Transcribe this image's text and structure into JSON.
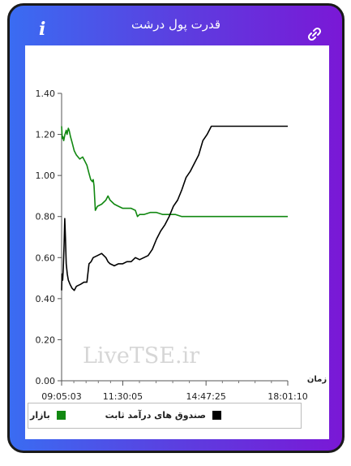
{
  "app": {
    "title": "قدرت پول درشت",
    "info_icon": "info-icon",
    "link_icon": "link-icon",
    "accent_colors": [
      "#3a6cf2",
      "#7a18d6"
    ]
  },
  "watermark": "LiveTSE.ir",
  "chart_data": {
    "type": "line",
    "xlabel": "زمان",
    "ylabel": "",
    "ylim": [
      0,
      1.4
    ],
    "y_ticks": [
      "0.00",
      "0.20",
      "0.40",
      "0.60",
      "0.80",
      "1.00",
      "1.20",
      "1.40"
    ],
    "x_ticks": [
      "09:05:03",
      "11:30:05",
      "14:47:25",
      "18:01:10"
    ],
    "x_tick_seconds": [
      32703,
      41405,
      53245,
      64870
    ],
    "series": [
      {
        "name": "بازار",
        "color": "#118811",
        "points": [
          [
            "09:05:03",
            1.24
          ],
          [
            "09:06:30",
            1.18
          ],
          [
            "09:08:00",
            1.19
          ],
          [
            "09:10:00",
            1.17
          ],
          [
            "09:13:00",
            1.2
          ],
          [
            "09:16:00",
            1.22
          ],
          [
            "09:18:00",
            1.2
          ],
          [
            "09:21:00",
            1.23
          ],
          [
            "09:23:00",
            1.22
          ],
          [
            "09:26:00",
            1.19
          ],
          [
            "09:30:00",
            1.16
          ],
          [
            "09:35:00",
            1.12
          ],
          [
            "09:40:00",
            1.1
          ],
          [
            "09:48:00",
            1.08
          ],
          [
            "09:55:00",
            1.09
          ],
          [
            "10:00:00",
            1.07
          ],
          [
            "10:05:00",
            1.05
          ],
          [
            "10:10:00",
            1.01
          ],
          [
            "10:14:00",
            0.98
          ],
          [
            "10:18:00",
            0.97
          ],
          [
            "10:20:00",
            0.98
          ],
          [
            "10:22:00",
            0.95
          ],
          [
            "10:25:00",
            0.83
          ],
          [
            "10:30:00",
            0.85
          ],
          [
            "10:40:00",
            0.86
          ],
          [
            "10:50:00",
            0.88
          ],
          [
            "10:55:00",
            0.9
          ],
          [
            "11:00:00",
            0.88
          ],
          [
            "11:10:00",
            0.86
          ],
          [
            "11:20:00",
            0.85
          ],
          [
            "11:30:00",
            0.84
          ],
          [
            "11:40:00",
            0.84
          ],
          [
            "11:50:00",
            0.84
          ],
          [
            "12:00:00",
            0.83
          ],
          [
            "12:05:00",
            0.8
          ],
          [
            "12:10:00",
            0.81
          ],
          [
            "12:20:00",
            0.81
          ],
          [
            "12:35:00",
            0.82
          ],
          [
            "12:50:00",
            0.82
          ],
          [
            "13:05:00",
            0.81
          ],
          [
            "13:20:00",
            0.81
          ],
          [
            "13:35:00",
            0.81
          ],
          [
            "13:50:00",
            0.8
          ],
          [
            "14:30:00",
            0.8
          ],
          [
            "15:30:00",
            0.8
          ],
          [
            "16:30:00",
            0.8
          ],
          [
            "17:30:00",
            0.8
          ],
          [
            "18:01:10",
            0.8
          ]
        ]
      },
      {
        "name": "صندوق های درآمد ثابت",
        "color": "#000000",
        "points": [
          [
            "09:05:03",
            0.44
          ],
          [
            "09:06:00",
            0.52
          ],
          [
            "09:07:30",
            0.49
          ],
          [
            "09:09:00",
            0.55
          ],
          [
            "09:11:00",
            0.67
          ],
          [
            "09:12:30",
            0.79
          ],
          [
            "09:14:00",
            0.7
          ],
          [
            "09:16:00",
            0.57
          ],
          [
            "09:18:30",
            0.52
          ],
          [
            "09:21:00",
            0.49
          ],
          [
            "09:25:00",
            0.47
          ],
          [
            "09:30:00",
            0.45
          ],
          [
            "09:35:00",
            0.44
          ],
          [
            "09:40:00",
            0.46
          ],
          [
            "09:50:00",
            0.47
          ],
          [
            "09:58:00",
            0.48
          ],
          [
            "10:05:00",
            0.48
          ],
          [
            "10:10:00",
            0.57
          ],
          [
            "10:15:00",
            0.58
          ],
          [
            "10:20:00",
            0.6
          ],
          [
            "10:30:00",
            0.61
          ],
          [
            "10:40:00",
            0.62
          ],
          [
            "10:50:00",
            0.6
          ],
          [
            "10:55:00",
            0.58
          ],
          [
            "11:00:00",
            0.57
          ],
          [
            "11:10:00",
            0.56
          ],
          [
            "11:20:00",
            0.57
          ],
          [
            "11:30:00",
            0.57
          ],
          [
            "11:40:00",
            0.58
          ],
          [
            "11:50:00",
            0.58
          ],
          [
            "12:00:00",
            0.6
          ],
          [
            "12:10:00",
            0.59
          ],
          [
            "12:20:00",
            0.6
          ],
          [
            "12:30:00",
            0.61
          ],
          [
            "12:40:00",
            0.64
          ],
          [
            "12:50:00",
            0.69
          ],
          [
            "13:00:00",
            0.73
          ],
          [
            "13:10:00",
            0.76
          ],
          [
            "13:20:00",
            0.8
          ],
          [
            "13:30:00",
            0.85
          ],
          [
            "13:40:00",
            0.88
          ],
          [
            "13:50:00",
            0.93
          ],
          [
            "14:00:00",
            0.99
          ],
          [
            "14:10:00",
            1.02
          ],
          [
            "14:20:00",
            1.06
          ],
          [
            "14:30:00",
            1.1
          ],
          [
            "14:40:00",
            1.17
          ],
          [
            "14:50:00",
            1.2
          ],
          [
            "15:00:00",
            1.24
          ],
          [
            "16:00:00",
            1.24
          ],
          [
            "17:00:00",
            1.24
          ],
          [
            "18:01:10",
            1.24
          ]
        ]
      }
    ],
    "legend_position": "bottom",
    "grid": false
  }
}
